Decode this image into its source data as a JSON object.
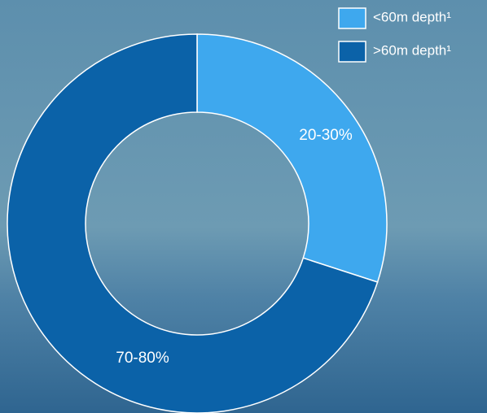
{
  "chart_data": {
    "type": "donut",
    "categories": [
      "<60m depth¹",
      ">60m depth¹"
    ],
    "values": [
      30,
      70
    ],
    "value_labels": [
      "20-30%",
      "70-80%"
    ],
    "colors": [
      "#3ea8ee",
      "#0b62a8"
    ]
  }
}
